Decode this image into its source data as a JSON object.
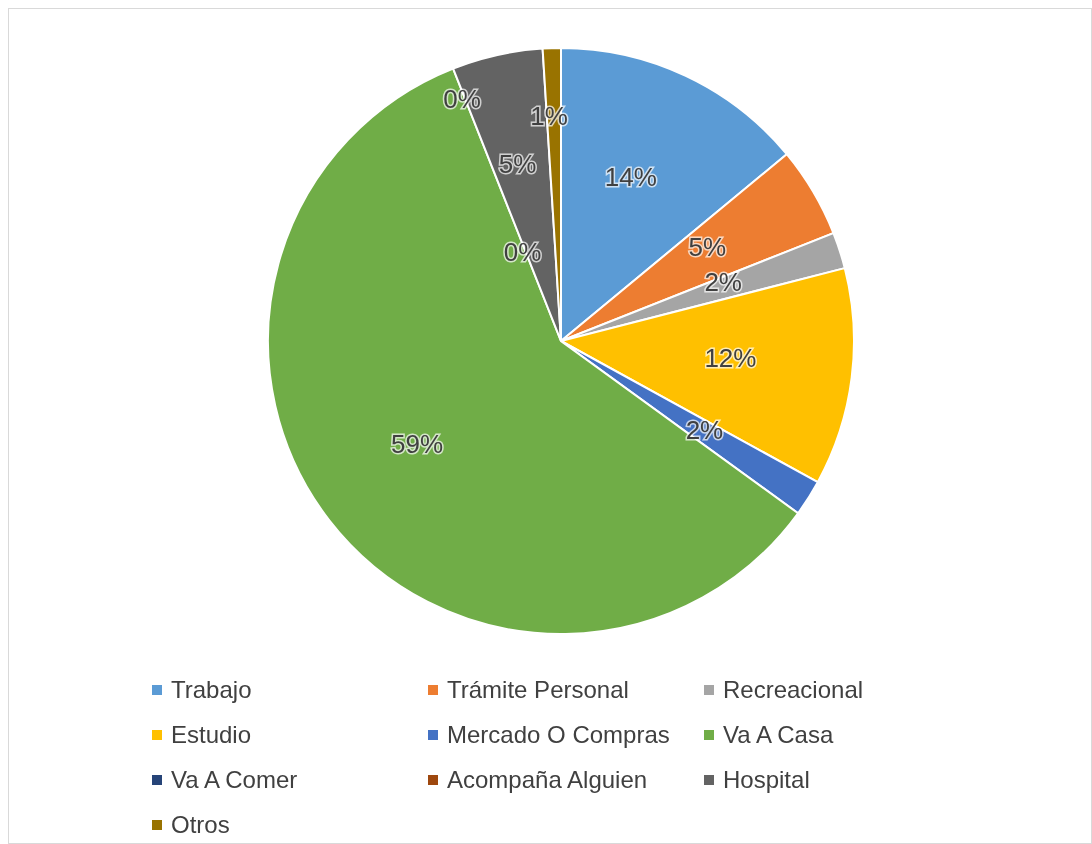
{
  "chart_data": {
    "type": "pie",
    "categories": [
      "Trabajo",
      "Trámite Personal",
      "Recreacional",
      "Estudio",
      "Mercado O Compras",
      "Va A Casa",
      "Va A Comer",
      "Acompaña Alguien",
      "Hospital",
      "Otros"
    ],
    "values": [
      14,
      5,
      2,
      12,
      2,
      59,
      0,
      0,
      5,
      1
    ],
    "colors": [
      "#5b9bd5",
      "#ed7d31",
      "#a5a5a5",
      "#ffc000",
      "#4472c4",
      "#70ad47",
      "#264478",
      "#9e480e",
      "#636363",
      "#997300"
    ],
    "value_labels": [
      "14%",
      "5%",
      "2%",
      "12%",
      "2%",
      "59%",
      "0%",
      "0%",
      "5%",
      "1%"
    ],
    "legend": "bottom"
  }
}
